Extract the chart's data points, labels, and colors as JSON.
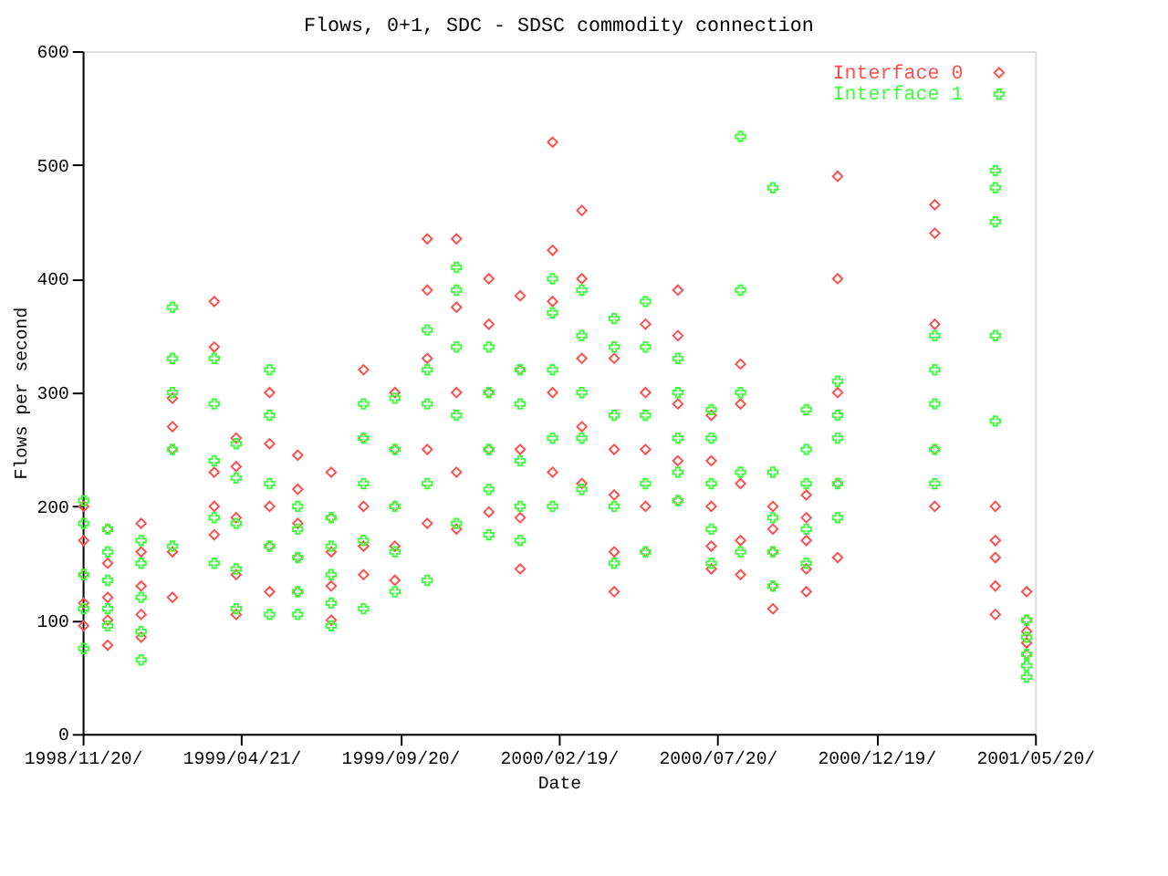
{
  "chart_data": {
    "type": "scatter",
    "title": "Flows, 0+1, SDC - SDSC commodity connection",
    "xlabel": "Date",
    "ylabel": "Flows per second",
    "xlim": [
      "1998-11-20",
      "2001-05-20"
    ],
    "xticks": [
      {
        "value": "1998-11-20",
        "label": "1998/11/20/"
      },
      {
        "value": "1999-04-21",
        "label": "1999/04/21/"
      },
      {
        "value": "1999-09-20",
        "label": "1999/09/20/"
      },
      {
        "value": "2000-02-19",
        "label": "2000/02/19/"
      },
      {
        "value": "2000-07-20",
        "label": "2000/07/20/"
      },
      {
        "value": "2000-12-19",
        "label": "2000/12/19/"
      },
      {
        "value": "2001-05-20",
        "label": "2001/05/20/"
      }
    ],
    "ylim": [
      0,
      600
    ],
    "yticks": [
      0,
      100,
      200,
      300,
      400,
      500,
      600
    ],
    "grid": false,
    "legend": "top right",
    "series": [
      {
        "name": "Interface 0",
        "color": "#ff5050",
        "marker": "diamond",
        "x": [
          "1998-11-21",
          "1998-11-21",
          "1998-11-21",
          "1998-11-21",
          "1998-11-21",
          "1998-12-14",
          "1998-12-14",
          "1998-12-14",
          "1998-12-14",
          "1998-12-14",
          "1999-01-15",
          "1999-01-15",
          "1999-01-15",
          "1999-01-15",
          "1999-01-15",
          "1999-02-14",
          "1999-02-14",
          "1999-02-14",
          "1999-02-14",
          "1999-02-14",
          "1999-03-26",
          "1999-03-26",
          "1999-03-26",
          "1999-03-26",
          "1999-03-26",
          "1999-04-16",
          "1999-04-16",
          "1999-04-16",
          "1999-04-16",
          "1999-04-16",
          "1999-05-18",
          "1999-05-18",
          "1999-05-18",
          "1999-05-18",
          "1999-05-18",
          "1999-06-14",
          "1999-06-14",
          "1999-06-14",
          "1999-06-14",
          "1999-06-14",
          "1999-07-16",
          "1999-07-16",
          "1999-07-16",
          "1999-07-16",
          "1999-07-16",
          "1999-08-16",
          "1999-08-16",
          "1999-08-16",
          "1999-08-16",
          "1999-08-16",
          "1999-09-15",
          "1999-09-15",
          "1999-09-15",
          "1999-09-15",
          "1999-09-15",
          "1999-10-16",
          "1999-10-16",
          "1999-10-16",
          "1999-10-16",
          "1999-10-16",
          "1999-11-13",
          "1999-11-13",
          "1999-11-13",
          "1999-11-13",
          "1999-11-13",
          "1999-12-14",
          "1999-12-14",
          "1999-12-14",
          "1999-12-14",
          "1999-12-14",
          "2000-01-13",
          "2000-01-13",
          "2000-01-13",
          "2000-01-13",
          "2000-01-13",
          "2000-02-13",
          "2000-02-13",
          "2000-02-13",
          "2000-02-13",
          "2000-02-13",
          "2000-03-12",
          "2000-03-12",
          "2000-03-12",
          "2000-03-12",
          "2000-03-12",
          "2000-04-12",
          "2000-04-12",
          "2000-04-12",
          "2000-04-12",
          "2000-04-12",
          "2000-05-12",
          "2000-05-12",
          "2000-05-12",
          "2000-05-12",
          "2000-05-12",
          "2000-06-12",
          "2000-06-12",
          "2000-06-12",
          "2000-06-12",
          "2000-06-12",
          "2000-07-14",
          "2000-07-14",
          "2000-07-14",
          "2000-07-14",
          "2000-07-14",
          "2000-08-11",
          "2000-08-11",
          "2000-08-11",
          "2000-08-11",
          "2000-08-11",
          "2000-09-11",
          "2000-09-11",
          "2000-09-11",
          "2000-09-11",
          "2000-09-11",
          "2000-10-13",
          "2000-10-13",
          "2000-10-13",
          "2000-10-13",
          "2000-10-13",
          "2000-11-12",
          "2000-11-12",
          "2000-11-12",
          "2000-11-12",
          "2000-11-12",
          "2001-02-13",
          "2001-02-13",
          "2001-02-13",
          "2001-02-13",
          "2001-02-13",
          "2001-04-12",
          "2001-04-12",
          "2001-04-12",
          "2001-04-12",
          "2001-04-12",
          "2001-05-12",
          "2001-05-12",
          "2001-05-12",
          "2001-05-12",
          "2001-05-12"
        ],
        "values": [
          200,
          170,
          140,
          115,
          95,
          180,
          150,
          120,
          100,
          78,
          185,
          160,
          130,
          105,
          85,
          295,
          270,
          250,
          160,
          120,
          380,
          340,
          230,
          200,
          175,
          260,
          235,
          190,
          140,
          105,
          300,
          255,
          200,
          165,
          125,
          245,
          215,
          185,
          155,
          125,
          230,
          190,
          160,
          130,
          100,
          320,
          260,
          200,
          165,
          140,
          300,
          250,
          200,
          165,
          135,
          435,
          390,
          330,
          250,
          185,
          435,
          375,
          300,
          230,
          180,
          400,
          360,
          300,
          250,
          195,
          385,
          320,
          250,
          190,
          145,
          520,
          425,
          380,
          300,
          230,
          460,
          400,
          330,
          270,
          220,
          330,
          250,
          210,
          160,
          125,
          360,
          300,
          250,
          200,
          160,
          390,
          350,
          290,
          240,
          205,
          280,
          240,
          200,
          165,
          145,
          325,
          290,
          220,
          170,
          140,
          200,
          180,
          160,
          130,
          110,
          210,
          190,
          170,
          145,
          125,
          490,
          400,
          300,
          220,
          155,
          465,
          440,
          360,
          250,
          200,
          200,
          170,
          155,
          130,
          105,
          125,
          100,
          90,
          80,
          70
        ]
      },
      {
        "name": "Interface 1",
        "color": "#40ff40",
        "marker": "cross",
        "x": [
          "1998-11-21",
          "1998-11-21",
          "1998-11-21",
          "1998-11-21",
          "1998-11-21",
          "1998-12-14",
          "1998-12-14",
          "1998-12-14",
          "1998-12-14",
          "1998-12-14",
          "1999-01-15",
          "1999-01-15",
          "1999-01-15",
          "1999-01-15",
          "1999-01-15",
          "1999-02-14",
          "1999-02-14",
          "1999-02-14",
          "1999-02-14",
          "1999-02-14",
          "1999-03-26",
          "1999-03-26",
          "1999-03-26",
          "1999-03-26",
          "1999-03-26",
          "1999-04-16",
          "1999-04-16",
          "1999-04-16",
          "1999-04-16",
          "1999-04-16",
          "1999-05-18",
          "1999-05-18",
          "1999-05-18",
          "1999-05-18",
          "1999-05-18",
          "1999-06-14",
          "1999-06-14",
          "1999-06-14",
          "1999-06-14",
          "1999-06-14",
          "1999-07-16",
          "1999-07-16",
          "1999-07-16",
          "1999-07-16",
          "1999-07-16",
          "1999-08-16",
          "1999-08-16",
          "1999-08-16",
          "1999-08-16",
          "1999-08-16",
          "1999-09-15",
          "1999-09-15",
          "1999-09-15",
          "1999-09-15",
          "1999-09-15",
          "1999-10-16",
          "1999-10-16",
          "1999-10-16",
          "1999-10-16",
          "1999-10-16",
          "1999-11-13",
          "1999-11-13",
          "1999-11-13",
          "1999-11-13",
          "1999-11-13",
          "1999-12-14",
          "1999-12-14",
          "1999-12-14",
          "1999-12-14",
          "1999-12-14",
          "2000-01-13",
          "2000-01-13",
          "2000-01-13",
          "2000-01-13",
          "2000-01-13",
          "2000-02-13",
          "2000-02-13",
          "2000-02-13",
          "2000-02-13",
          "2000-02-13",
          "2000-03-12",
          "2000-03-12",
          "2000-03-12",
          "2000-03-12",
          "2000-03-12",
          "2000-04-12",
          "2000-04-12",
          "2000-04-12",
          "2000-04-12",
          "2000-04-12",
          "2000-05-12",
          "2000-05-12",
          "2000-05-12",
          "2000-05-12",
          "2000-05-12",
          "2000-06-12",
          "2000-06-12",
          "2000-06-12",
          "2000-06-12",
          "2000-06-12",
          "2000-07-14",
          "2000-07-14",
          "2000-07-14",
          "2000-07-14",
          "2000-07-14",
          "2000-08-11",
          "2000-08-11",
          "2000-08-11",
          "2000-08-11",
          "2000-08-11",
          "2000-09-11",
          "2000-09-11",
          "2000-09-11",
          "2000-09-11",
          "2000-09-11",
          "2000-10-13",
          "2000-10-13",
          "2000-10-13",
          "2000-10-13",
          "2000-10-13",
          "2000-11-12",
          "2000-11-12",
          "2000-11-12",
          "2000-11-12",
          "2000-11-12",
          "2001-02-13",
          "2001-02-13",
          "2001-02-13",
          "2001-02-13",
          "2001-02-13",
          "2001-04-12",
          "2001-04-12",
          "2001-04-12",
          "2001-04-12",
          "2001-04-12",
          "2001-05-12",
          "2001-05-12",
          "2001-05-12",
          "2001-05-12",
          "2001-05-12"
        ],
        "values": [
          205,
          185,
          140,
          110,
          75,
          180,
          160,
          135,
          110,
          95,
          170,
          150,
          120,
          90,
          65,
          375,
          330,
          300,
          250,
          165,
          330,
          290,
          240,
          190,
          150,
          255,
          225,
          185,
          145,
          110,
          320,
          280,
          220,
          165,
          105,
          200,
          180,
          155,
          125,
          105,
          190,
          165,
          140,
          115,
          95,
          290,
          260,
          220,
          170,
          110,
          295,
          250,
          200,
          160,
          125,
          355,
          320,
          290,
          220,
          135,
          410,
          390,
          340,
          280,
          185,
          340,
          300,
          250,
          215,
          175,
          320,
          290,
          240,
          200,
          170,
          400,
          370,
          320,
          260,
          200,
          390,
          350,
          300,
          260,
          215,
          365,
          340,
          280,
          200,
          150,
          380,
          340,
          280,
          220,
          160,
          330,
          300,
          260,
          230,
          205,
          285,
          260,
          220,
          180,
          150,
          525,
          390,
          300,
          230,
          160,
          480,
          230,
          190,
          160,
          130,
          285,
          250,
          220,
          180,
          150,
          310,
          280,
          260,
          220,
          190,
          350,
          320,
          290,
          250,
          220,
          495,
          480,
          450,
          350,
          275,
          100,
          85,
          70,
          60,
          50
        ]
      }
    ]
  }
}
